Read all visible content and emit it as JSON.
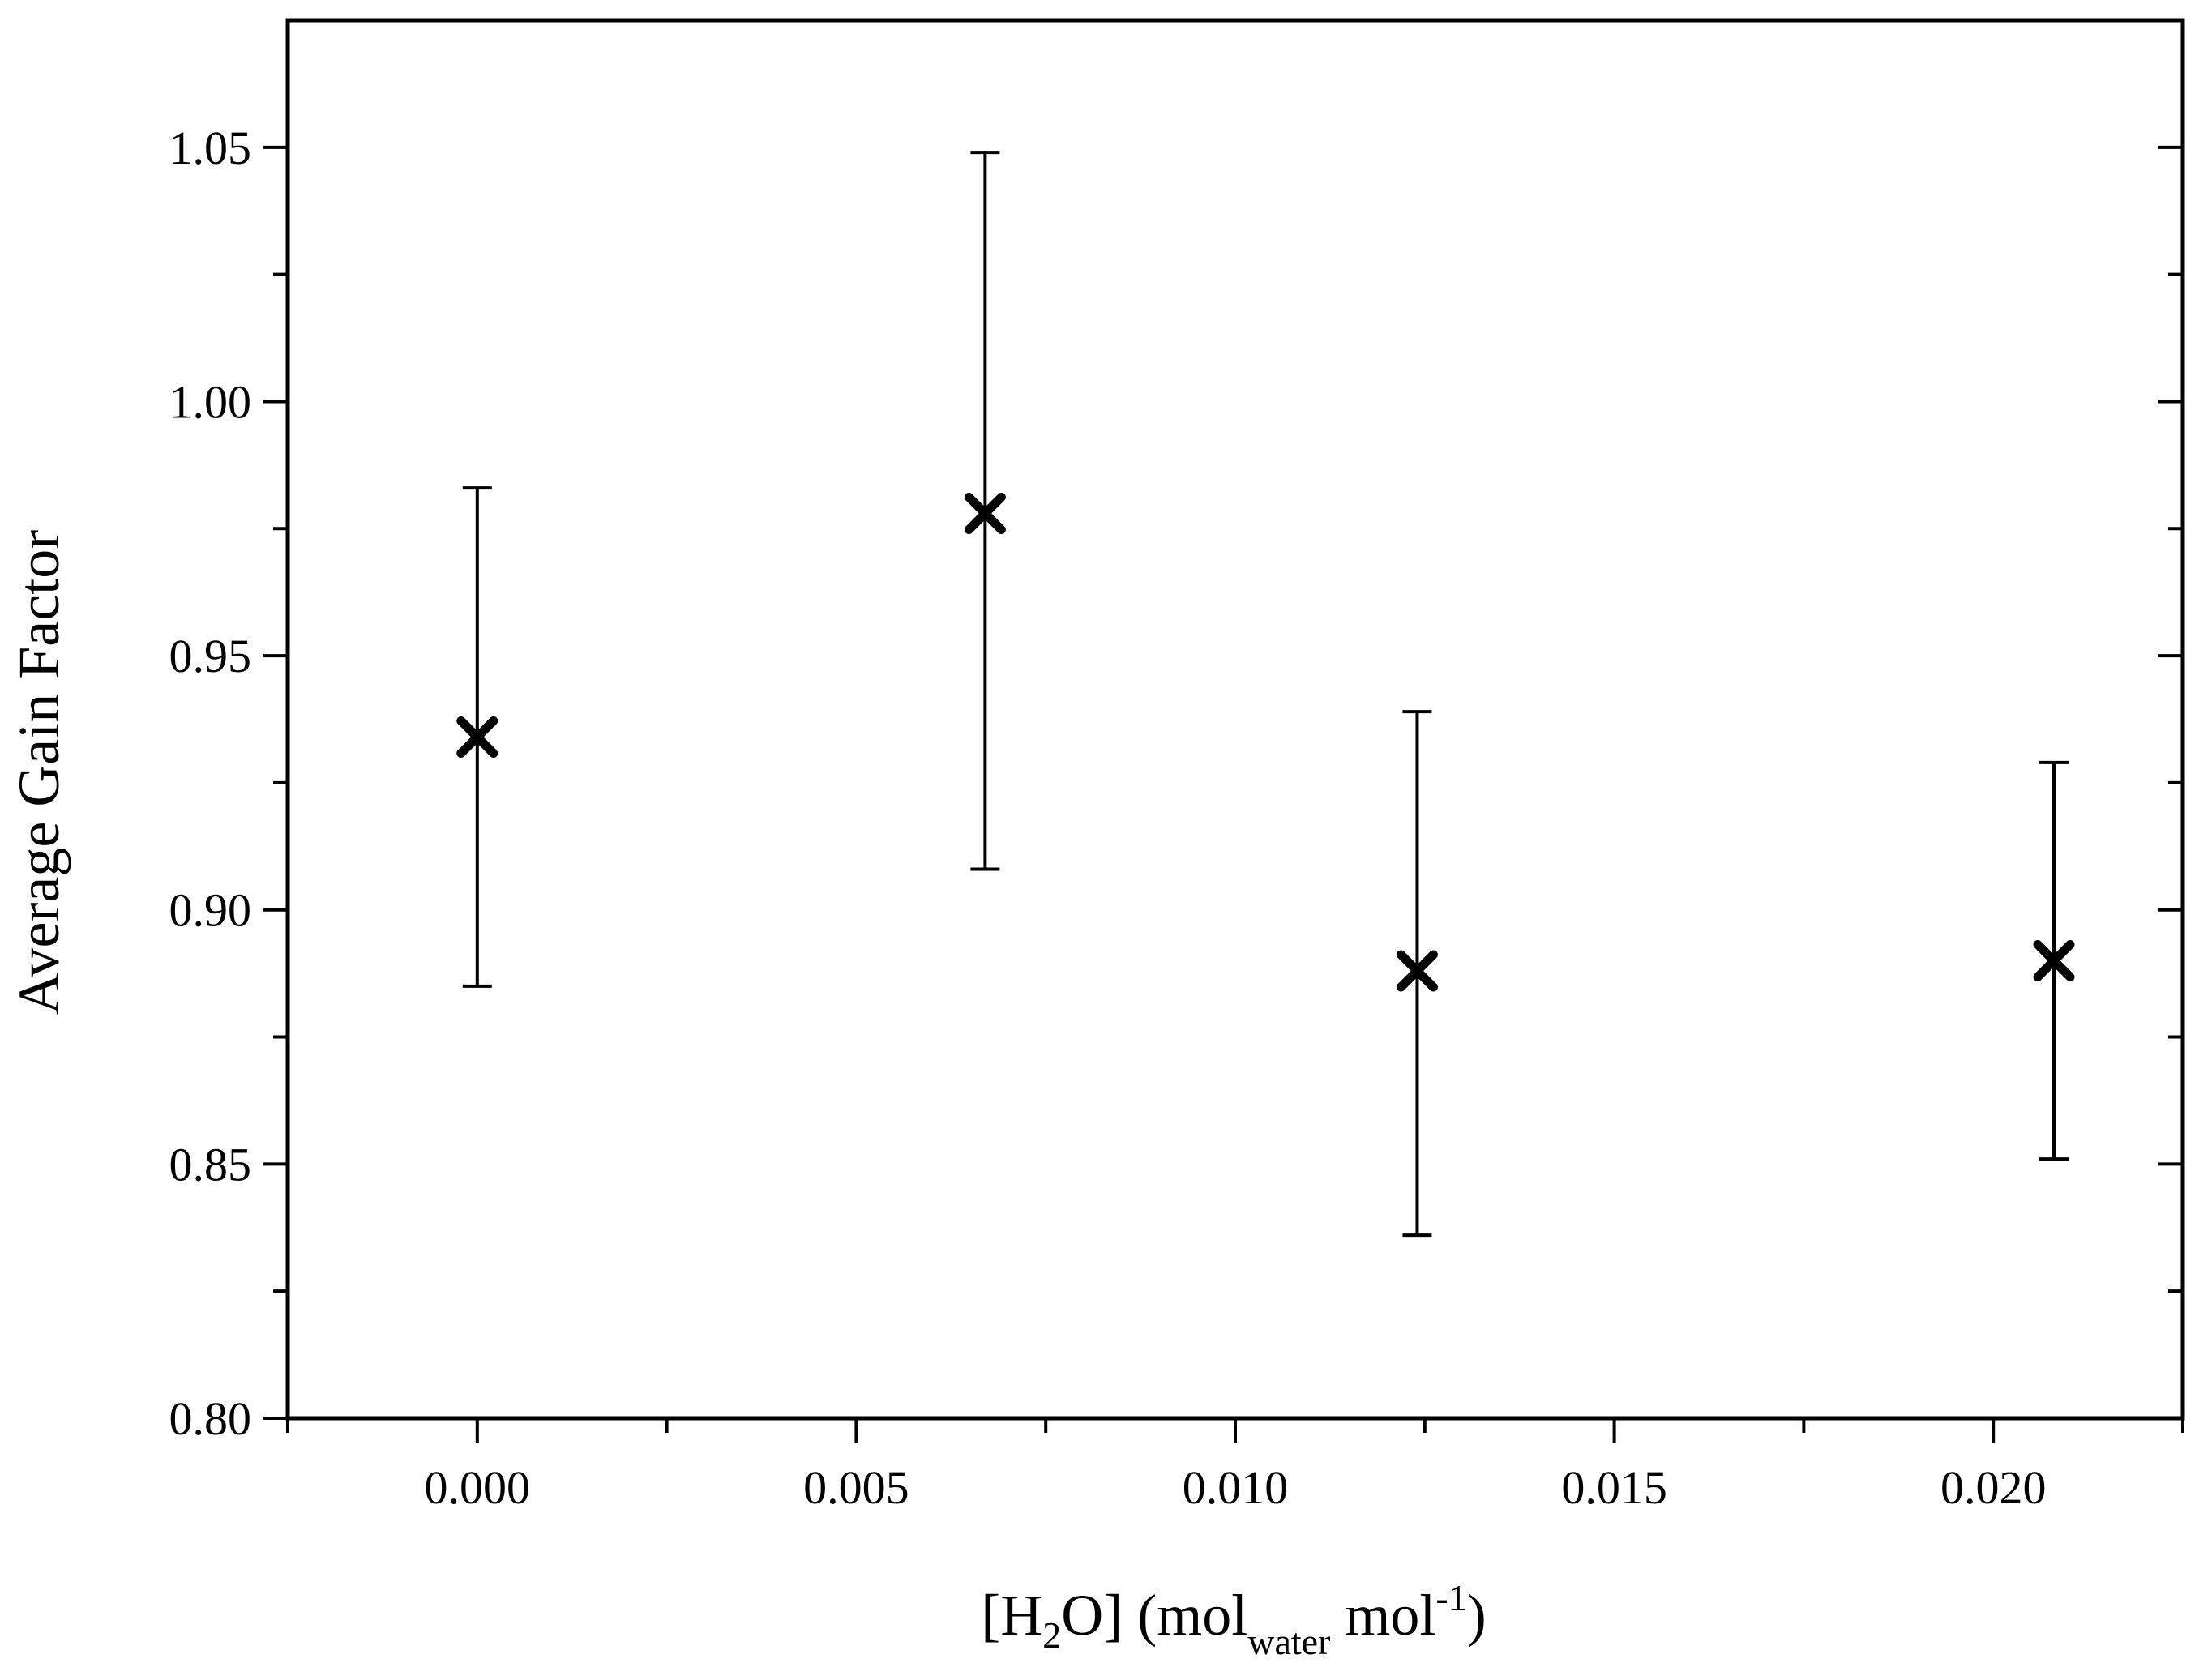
{
  "chart_data": {
    "type": "scatter",
    "title": "",
    "xlabel": {
      "prefix": "[H",
      "sub1": "2",
      "mid": "O] (mol",
      "sub2": "water",
      "mid2": " mol",
      "sup": "-1",
      "suffix": ")"
    },
    "ylabel": "Average Gain Factor",
    "xlim": [
      -0.0025,
      0.0225
    ],
    "ylim": [
      0.8,
      1.075
    ],
    "x_ticks": [
      0.0,
      0.005,
      0.01,
      0.015,
      0.02
    ],
    "x_tick_labels": [
      "0.000",
      "0.005",
      "0.010",
      "0.015",
      "0.020"
    ],
    "x_minor_ticks": [
      -0.0025,
      0.0025,
      0.0075,
      0.0125,
      0.0175,
      0.0225
    ],
    "y_ticks": [
      0.8,
      0.85,
      0.9,
      0.95,
      1.0,
      1.05
    ],
    "y_tick_labels": [
      "0.80",
      "0.85",
      "0.90",
      "0.95",
      "1.00",
      "1.05"
    ],
    "y_minor_ticks": [
      0.825,
      0.875,
      0.925,
      0.975,
      1.025
    ],
    "grid": false,
    "legend": "none",
    "marker": "x",
    "marker_color": "#000000",
    "series": [
      {
        "points": [
          {
            "x": 0.0,
            "y": 0.934,
            "yerr_low": 0.885,
            "yerr_high": 0.983
          },
          {
            "x": 0.0067,
            "y": 0.978,
            "yerr_low": 0.908,
            "yerr_high": 1.049
          },
          {
            "x": 0.0124,
            "y": 0.888,
            "yerr_low": 0.836,
            "yerr_high": 0.939
          },
          {
            "x": 0.0208,
            "y": 0.89,
            "yerr_low": 0.851,
            "yerr_high": 0.929
          }
        ]
      }
    ]
  }
}
